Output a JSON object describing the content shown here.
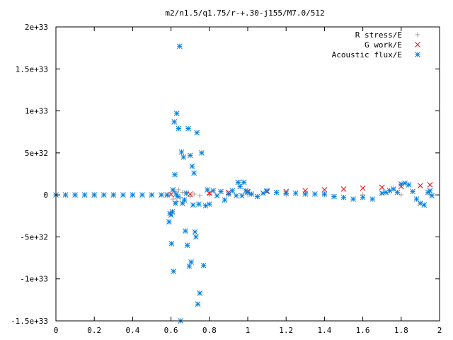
{
  "chart_data": {
    "type": "scatter",
    "title": "m2/n1.5/q1.75/r-+.30-j155/M7.0/512",
    "xlabel": "",
    "ylabel": "",
    "xlim": [
      0,
      2
    ],
    "ylim": [
      -1.5e+33,
      2e+33
    ],
    "x_ticks": [
      0,
      0.2,
      0.4,
      0.6,
      0.8,
      1,
      1.2,
      1.4,
      1.6,
      1.8,
      2
    ],
    "x_tick_labels": [
      "0",
      "0.2",
      "0.4",
      "0.6",
      "0.8",
      "1",
      "1.2",
      "1.4",
      "1.6",
      "1.8",
      "2"
    ],
    "y_ticks": [
      -1.5e+33,
      -1e+33,
      -5e+32,
      0,
      5e+32,
      1e+33,
      1.5e+33,
      2e+33
    ],
    "y_tick_labels": [
      "-1.5e+33",
      "-1e+33",
      "-5e+32",
      "0",
      "5e+32",
      "1e+33",
      "1.5e+33",
      "2e+33"
    ],
    "grid": false,
    "legend_position": "top-right",
    "series": [
      {
        "name": "R stress/E",
        "marker": "plus",
        "color": "#a0a0a0",
        "x": [
          0.0,
          0.1,
          0.2,
          0.3,
          0.4,
          0.5,
          0.55,
          0.58,
          0.6,
          0.61,
          0.62,
          0.63,
          0.64,
          0.65,
          0.66,
          0.67,
          0.68,
          0.7,
          0.72,
          0.75,
          0.8,
          0.9,
          1.0,
          1.2,
          1.4,
          1.6,
          1.8,
          1.95
        ],
        "values": [
          0,
          0,
          0,
          0,
          0,
          0,
          0,
          -1e+31,
          2e+31,
          -5e+31,
          4e+31,
          -8e+31,
          6e+31,
          -3e+31,
          3e+31,
          -6e+31,
          2e+31,
          -2e+31,
          1e+31,
          -1e+31,
          5e+30,
          3e+30,
          2e+30,
          1e+30,
          1e+30,
          1e+30,
          1e+30,
          5e+30
        ]
      },
      {
        "name": "G work/E",
        "marker": "cross",
        "color": "#ff0000",
        "x": [
          0.6,
          0.7,
          0.8,
          0.9,
          1.0,
          1.1,
          1.2,
          1.3,
          1.4,
          1.5,
          1.6,
          1.7,
          1.8,
          1.9,
          1.95
        ],
        "values": [
          5e+30,
          1e+31,
          2e+31,
          3e+31,
          4e+31,
          4e+31,
          4e+31,
          5e+31,
          6e+31,
          7e+31,
          8e+31,
          9e+31,
          1e+32,
          1.1e+32,
          1.2e+32
        ]
      },
      {
        "name": "Acoustic flux/E",
        "marker": "star",
        "color": "#0080e0",
        "x": [
          0.0,
          0.05,
          0.1,
          0.15,
          0.2,
          0.25,
          0.3,
          0.35,
          0.4,
          0.45,
          0.5,
          0.55,
          0.58,
          0.59,
          0.595,
          0.6,
          0.603,
          0.607,
          0.61,
          0.613,
          0.617,
          0.62,
          0.623,
          0.627,
          0.63,
          0.635,
          0.64,
          0.645,
          0.65,
          0.655,
          0.66,
          0.665,
          0.67,
          0.675,
          0.68,
          0.685,
          0.69,
          0.695,
          0.7,
          0.705,
          0.71,
          0.715,
          0.72,
          0.725,
          0.73,
          0.735,
          0.74,
          0.745,
          0.75,
          0.76,
          0.77,
          0.78,
          0.79,
          0.8,
          0.82,
          0.84,
          0.86,
          0.88,
          0.9,
          0.92,
          0.94,
          0.95,
          0.96,
          0.97,
          0.98,
          0.99,
          1.0,
          1.02,
          1.05,
          1.08,
          1.1,
          1.15,
          1.2,
          1.25,
          1.3,
          1.35,
          1.4,
          1.45,
          1.5,
          1.55,
          1.6,
          1.65,
          1.7,
          1.72,
          1.74,
          1.76,
          1.78,
          1.8,
          1.82,
          1.84,
          1.86,
          1.88,
          1.9,
          1.92,
          1.94,
          1.95,
          1.96
        ],
        "values": [
          0,
          0,
          0,
          0,
          0,
          0,
          0,
          0,
          0,
          0,
          0,
          0,
          0,
          -3.2e+32,
          -2.2e+32,
          -2.4e+32,
          -5.8e+32,
          -2e+32,
          6e+31,
          -9.1e+32,
          8.7e+32,
          2.4e+32,
          -1e+32,
          1e+31,
          9.7e+32,
          -2e+31,
          7.9e+32,
          1.77e+33,
          -1.5e+33,
          5.1e+32,
          -1e+32,
          4.5e+32,
          -6e+31,
          -4.3e+32,
          2e+31,
          -6e+32,
          7.9e+32,
          -8.5e+32,
          4.7e+32,
          -8e+32,
          3.4e+32,
          -1.2e+32,
          2.6e+32,
          -4.4e+32,
          -5e+32,
          7.4e+32,
          -1.3e+33,
          -1.1e+32,
          -1.17e+33,
          5e+32,
          -8.4e+32,
          -1.3e+32,
          6e+31,
          -1.1e+32,
          5e+31,
          -1e+31,
          4e+31,
          -6e+31,
          1e+31,
          5e+31,
          -1e+31,
          1.5e+32,
          1e+32,
          -1e+31,
          1.5e+32,
          5e+31,
          3e+31,
          1e+31,
          -2e+31,
          2e+31,
          5e+31,
          3e+31,
          2e+31,
          2e+31,
          1e+31,
          1e+31,
          1e+31,
          -2e+31,
          -3e+31,
          -5e+31,
          -3e+31,
          -5e+31,
          2e+31,
          3e+31,
          5e+31,
          7e+31,
          3e+31,
          1.3e+32,
          1.4e+32,
          1.2e+32,
          4e+31,
          -5e+31,
          -1e+32,
          -1.2e+32,
          3e+31,
          5e+31,
          -1e+31
        ]
      }
    ]
  }
}
